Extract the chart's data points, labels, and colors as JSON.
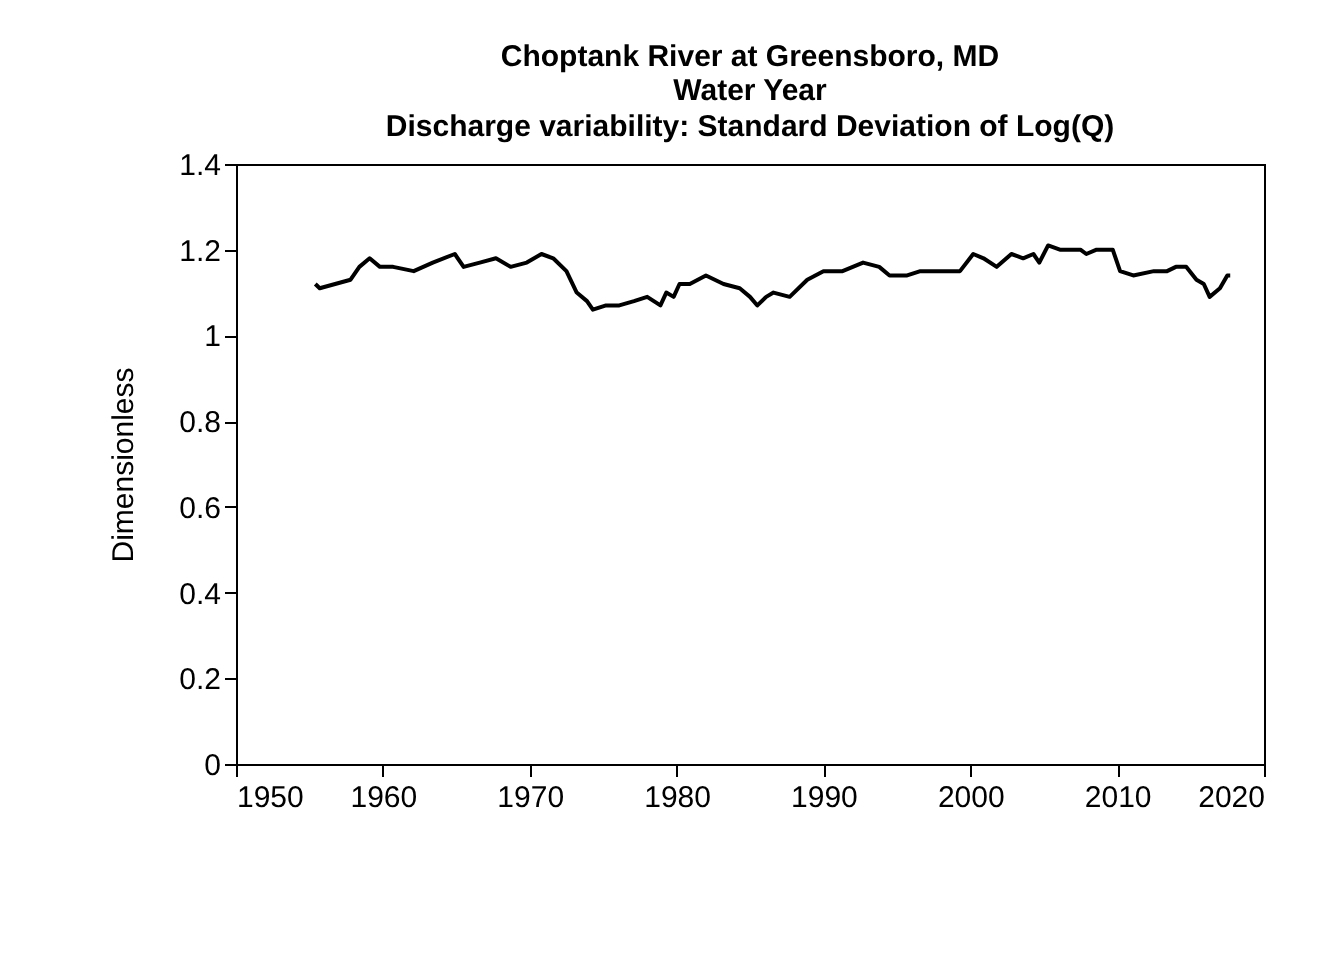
{
  "chart_data": {
    "type": "line",
    "title": "Choptank River at Greensboro, MD",
    "subtitle": [
      "Water Year",
      "Discharge variability: Standard Deviation of Log(Q)"
    ],
    "ylabel": "Dimensionless",
    "x": [
      1955.4,
      1955.7,
      1957.8,
      1958.4,
      1959.1,
      1959.8,
      1960.7,
      1962.1,
      1963.4,
      1964.9,
      1965.5,
      1966.6,
      1967.7,
      1968.7,
      1969.8,
      1970.8,
      1971.6,
      1972.5,
      1973.2,
      1973.9,
      1974.3,
      1975.2,
      1976.1,
      1977.1,
      1978.0,
      1978.9,
      1979.3,
      1979.8,
      1980.2,
      1980.9,
      1982.0,
      1983.2,
      1984.3,
      1985.0,
      1985.5,
      1986.1,
      1986.6,
      1987.7,
      1988.9,
      1990.0,
      1991.3,
      1992.7,
      1993.8,
      1994.5,
      1995.7,
      1996.6,
      1997.9,
      1999.3,
      2000.2,
      2000.9,
      2001.8,
      2002.8,
      2003.6,
      2004.3,
      2004.7,
      2005.3,
      2006.1,
      2006.8,
      2007.5,
      2007.9,
      2008.6,
      2009.7,
      2010.2,
      2011.1,
      2012.5,
      2013.4,
      2014.0,
      2014.7,
      2015.4,
      2015.9,
      2016.3,
      2017.0,
      2017.5,
      2017.7
    ],
    "series": [
      {
        "color": "#000000",
        "values": [
          1.12,
          1.11,
          1.13,
          1.16,
          1.18,
          1.16,
          1.16,
          1.15,
          1.17,
          1.19,
          1.16,
          1.17,
          1.18,
          1.16,
          1.17,
          1.19,
          1.18,
          1.15,
          1.1,
          1.08,
          1.06,
          1.07,
          1.07,
          1.08,
          1.09,
          1.07,
          1.1,
          1.09,
          1.12,
          1.12,
          1.14,
          1.12,
          1.11,
          1.09,
          1.07,
          1.09,
          1.1,
          1.09,
          1.13,
          1.15,
          1.15,
          1.17,
          1.16,
          1.14,
          1.14,
          1.15,
          1.15,
          1.15,
          1.19,
          1.18,
          1.16,
          1.19,
          1.18,
          1.19,
          1.17,
          1.21,
          1.2,
          1.2,
          1.2,
          1.19,
          1.2,
          1.2,
          1.15,
          1.14,
          1.15,
          1.15,
          1.16,
          1.16,
          1.13,
          1.12,
          1.09,
          1.11,
          1.14,
          1.14
        ]
      }
    ],
    "xlim": [
      1950,
      2020
    ],
    "xticks": [
      1950,
      1960,
      1970,
      1980,
      1990,
      2000,
      2010,
      2020
    ],
    "ylim": [
      0,
      1.4
    ],
    "yticks": [
      0,
      0.2,
      0.4,
      0.6,
      0.8,
      1,
      1.2,
      1.4
    ],
    "grid": false,
    "line_style": "solid",
    "marker": "none"
  }
}
